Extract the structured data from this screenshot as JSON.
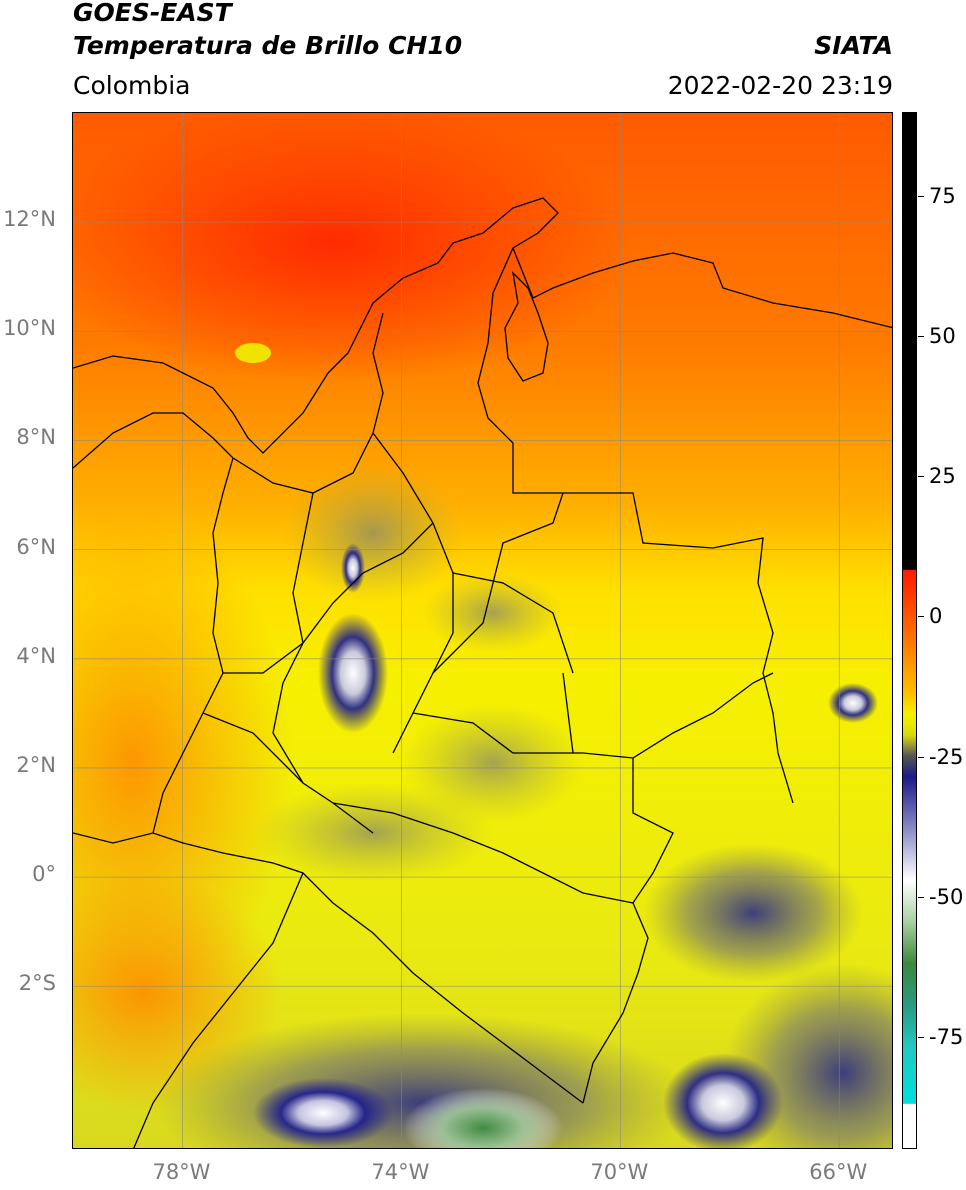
{
  "header": {
    "satellite": "GOES-EAST",
    "product": "Temperatura de Brillo CH10",
    "organization": "SIATA",
    "region": "Colombia",
    "timestamp": "2022-02-20 23:19"
  },
  "map": {
    "lon_range": [
      -80,
      -65
    ],
    "lat_range": [
      -5,
      14
    ],
    "lat_ticks": [
      {
        "value": 12,
        "label": "12°N"
      },
      {
        "value": 10,
        "label": "10°N"
      },
      {
        "value": 8,
        "label": "8°N"
      },
      {
        "value": 6,
        "label": "6°N"
      },
      {
        "value": 4,
        "label": "4°N"
      },
      {
        "value": 2,
        "label": "2°N"
      },
      {
        "value": 0,
        "label": "0°"
      },
      {
        "value": -2,
        "label": "2°S"
      }
    ],
    "lon_ticks": [
      {
        "value": -78,
        "label": "78°W"
      },
      {
        "value": -74,
        "label": "74°W"
      },
      {
        "value": -70,
        "label": "70°W"
      },
      {
        "value": -66,
        "label": "66°W"
      }
    ],
    "grid": true,
    "colors": {
      "warm": "#ff3a00",
      "mid": "#ff8c00",
      "cool": "#f2f200",
      "cold": "#1c1c8e",
      "coldest": "#ffffff",
      "green": "#3a8a3a",
      "border": "#000000"
    }
  },
  "colorbar": {
    "range": [
      -95,
      90
    ],
    "ticks": [
      {
        "value": 75,
        "label": "75"
      },
      {
        "value": 50,
        "label": "50"
      },
      {
        "value": 25,
        "label": "25"
      },
      {
        "value": 0,
        "label": "0"
      },
      {
        "value": -25,
        "label": "-25"
      },
      {
        "value": -50,
        "label": "-50"
      },
      {
        "value": -75,
        "label": "-75"
      }
    ]
  }
}
